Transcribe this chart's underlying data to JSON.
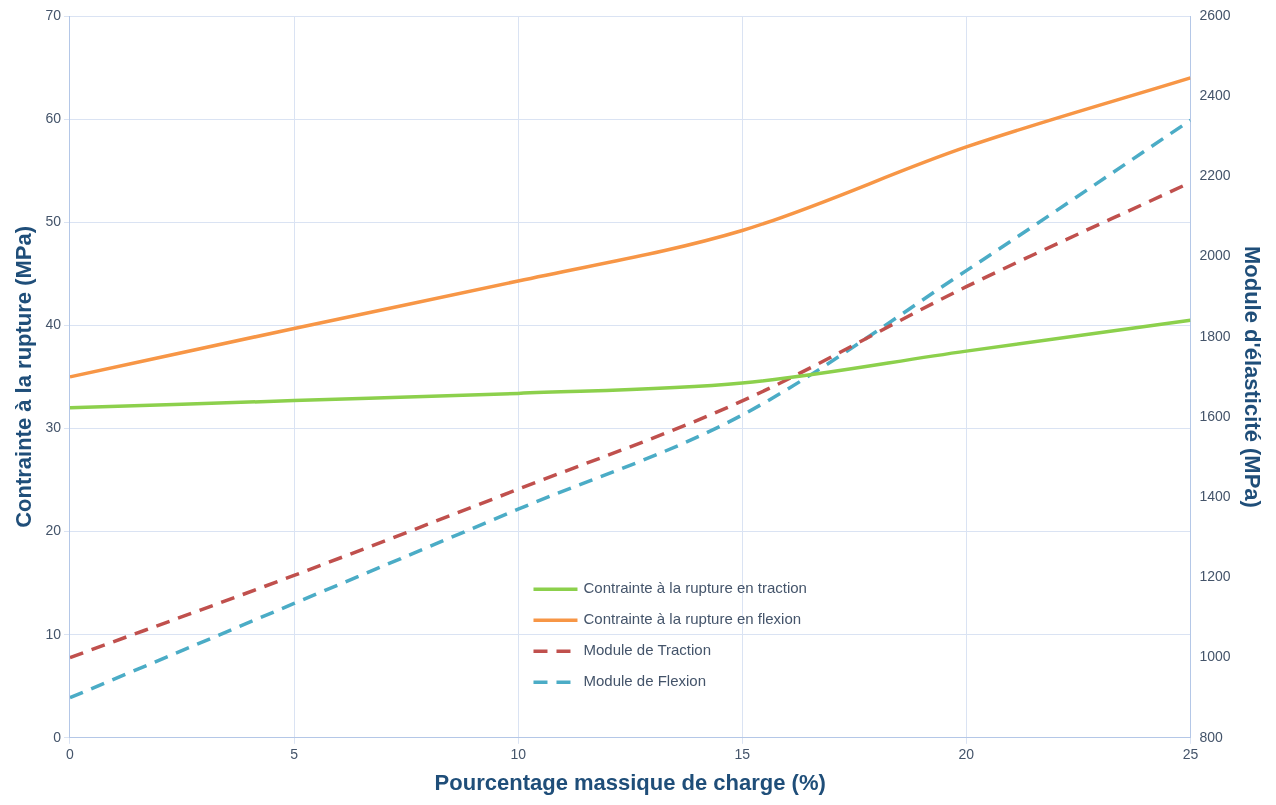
{
  "chart_data": {
    "type": "line",
    "xlabel": "Pourcentage massique de charge (%)",
    "ylabel": "Contrainte à la rupture (MPa)",
    "y2label": "Module d'élasticité (MPa)",
    "x": [
      0,
      5,
      10,
      15,
      20,
      25
    ],
    "xlim": [
      0,
      25
    ],
    "xticks": [
      0,
      5,
      10,
      15,
      20,
      25
    ],
    "ylim": [
      0,
      70
    ],
    "yticks": [
      0,
      10,
      20,
      30,
      40,
      50,
      60,
      70
    ],
    "y2lim": [
      800,
      2600
    ],
    "y2ticks": [
      800,
      1000,
      1200,
      1400,
      1600,
      1800,
      2000,
      2200,
      2400,
      2600
    ],
    "grid": true,
    "legend": "bottom",
    "marker": "none",
    "series": [
      {
        "name": "Contrainte à la rupture en traction",
        "color": "#8cd04c",
        "values": [
          32,
          32.7,
          33.4,
          34.4,
          37.5,
          40.5
        ],
        "line_style": "solid"
      },
      {
        "name": "Contrainte à la rupture en flexion",
        "color": "#f79646",
        "values": [
          35,
          39.7,
          44.3,
          49.2,
          57.3,
          64
        ],
        "line_style": "solid"
      },
      {
        "name": "Module de Traction",
        "color": "#c0504d",
        "values": [
          1000,
          1205,
          1420,
          1640,
          1925,
          2185
        ],
        "axis": "y2",
        "line_style": "dashed"
      },
      {
        "name": "Module de Flexion",
        "color": "#4bacc6",
        "values": [
          900,
          1135,
          1370,
          1605,
          1965,
          2340
        ],
        "axis": "y2",
        "line_style": "dashed"
      }
    ]
  }
}
